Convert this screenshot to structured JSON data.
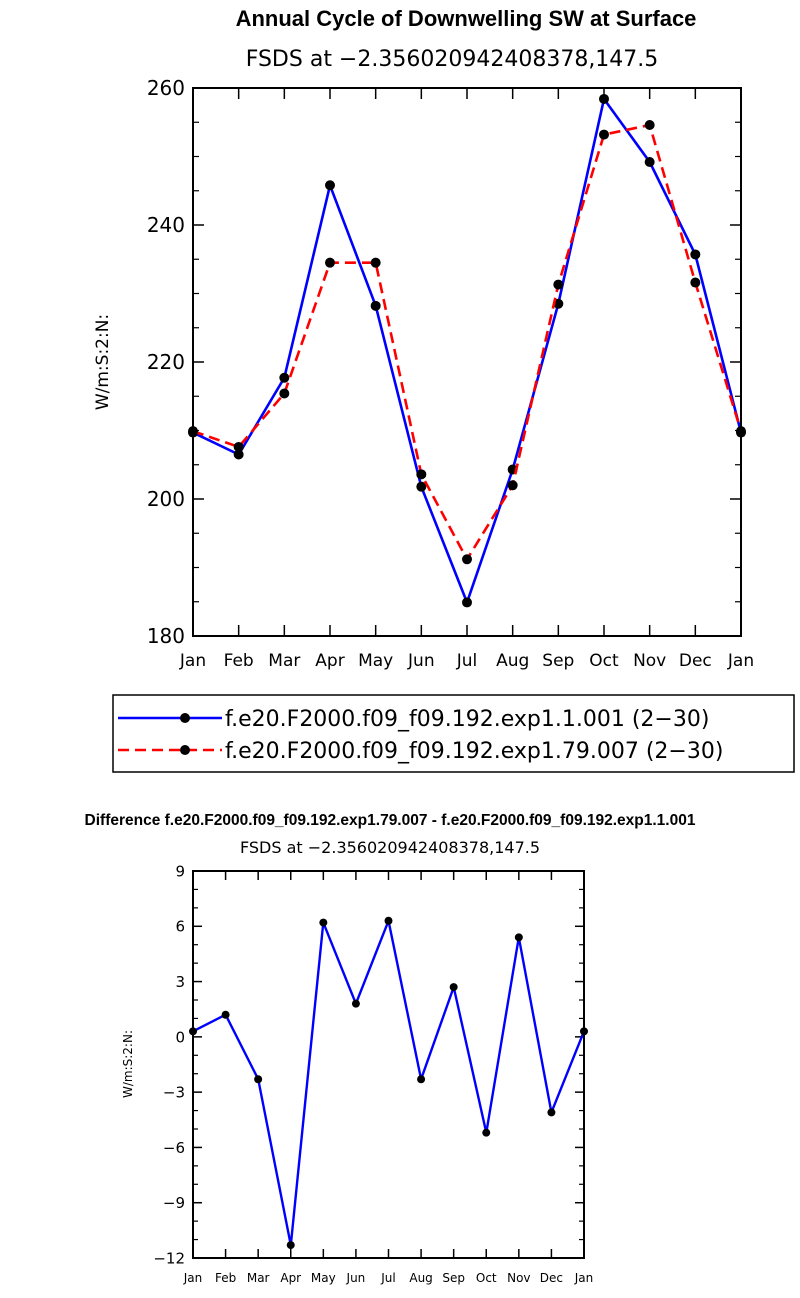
{
  "chart_data": [
    {
      "type": "line",
      "title": "Annual Cycle of Downwelling SW at Surface",
      "subtitle": "FSDS at −2.356020942408378,147.5",
      "xlabel": "",
      "ylabel": "W/m:S:2:N:",
      "categories": [
        "Jan",
        "Feb",
        "Mar",
        "Apr",
        "May",
        "Jun",
        "Jul",
        "Aug",
        "Sep",
        "Oct",
        "Nov",
        "Dec",
        "Jan"
      ],
      "ylim": [
        180,
        260
      ],
      "yticks": [
        "180",
        "200",
        "220",
        "240",
        "260"
      ],
      "series": [
        {
          "name": "f.e20.F2000.f09_f09.192.exp1.1.001 (2−30)",
          "color": "#0000ff",
          "dash": "solid",
          "values": [
            209.7,
            206.5,
            217.7,
            245.8,
            228.2,
            201.8,
            184.9,
            204.3,
            228.5,
            258.4,
            249.2,
            235.7,
            209.7
          ]
        },
        {
          "name": "f.e20.F2000.f09_f09.192.exp1.79.007 (2−30)",
          "color": "#ff0000",
          "dash": "dashed",
          "values": [
            209.9,
            207.6,
            215.4,
            234.5,
            234.5,
            203.6,
            191.2,
            202.0,
            231.3,
            253.2,
            254.6,
            231.6,
            209.9
          ]
        }
      ],
      "legend": "bottom"
    },
    {
      "type": "line",
      "title": "Difference f.e20.F2000.f09_f09.192.exp1.79.007 - f.e20.F2000.f09_f09.192.exp1.1.001",
      "subtitle": "FSDS at −2.356020942408378,147.5",
      "xlabel": "",
      "ylabel": "W/m:S:2:N:",
      "categories": [
        "Jan",
        "Feb",
        "Mar",
        "Apr",
        "May",
        "Jun",
        "Jul",
        "Aug",
        "Sep",
        "Oct",
        "Nov",
        "Dec",
        "Jan"
      ],
      "ylim": [
        -12,
        9
      ],
      "yticks": [
        "−12",
        "−9",
        "−6",
        "−3",
        "0",
        "3",
        "6",
        "9"
      ],
      "series": [
        {
          "color": "#0000ff",
          "dash": "solid",
          "values": [
            0.3,
            1.2,
            -2.3,
            -11.3,
            6.2,
            1.8,
            6.3,
            -2.3,
            2.7,
            -5.2,
            5.4,
            -4.1,
            0.3
          ]
        }
      ]
    }
  ]
}
